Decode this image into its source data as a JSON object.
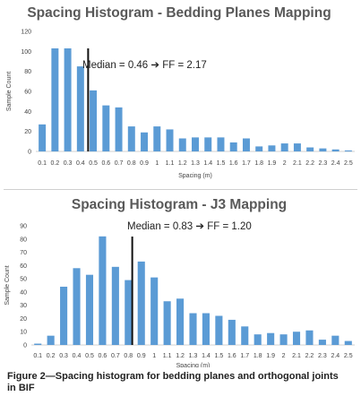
{
  "chart_data": [
    {
      "type": "bar",
      "title": "Spacing Histogram - Bedding Planes Mapping",
      "xlabel": "Spacing (m)",
      "ylabel": "Sample Count",
      "ylim": [
        0,
        120
      ],
      "yticks": [
        "0",
        "20",
        "40",
        "60",
        "80",
        "100",
        "120"
      ],
      "grid": false,
      "categories": [
        "0.1",
        "0.2",
        "0.3",
        "0.4",
        "0.5",
        "0.6",
        "0.7",
        "0.8",
        "0.9",
        "1",
        "1.1",
        "1.2",
        "1.3",
        "1.4",
        "1.5",
        "1.6",
        "1.7",
        "1.8",
        "1.9",
        "2",
        "2.1",
        "2.2",
        "2.3",
        "2.4",
        "2.5"
      ],
      "values": [
        27,
        103,
        103,
        85,
        61,
        46,
        44,
        25,
        19,
        25,
        22,
        13,
        14,
        14,
        14,
        9,
        13,
        5,
        6,
        8,
        8,
        4,
        3,
        2,
        1
      ],
      "color": "#5b9bd5",
      "median_marker_x": 0.46,
      "annotation": "Median = 0.46 ➔ FF = 2.17"
    },
    {
      "type": "bar",
      "title": "Spacing Histogram - J3 Mapping",
      "xlabel": "Spacing (m)",
      "ylabel": "Sample Count",
      "ylim": [
        0,
        90
      ],
      "yticks": [
        "0",
        "10",
        "20",
        "30",
        "40",
        "50",
        "60",
        "70",
        "80",
        "90"
      ],
      "grid": false,
      "categories": [
        "0.1",
        "0.2",
        "0.3",
        "0.4",
        "0.5",
        "0.6",
        "0.7",
        "0.8",
        "0.9",
        "1",
        "1.1",
        "1.2",
        "1.3",
        "1.4",
        "1.5",
        "1.6",
        "1.7",
        "1.8",
        "1.9",
        "2",
        "2.1",
        "2.2",
        "2.3",
        "2.4",
        "2.5"
      ],
      "values": [
        1,
        7,
        44,
        58,
        53,
        82,
        59,
        49,
        63,
        51,
        33,
        35,
        24,
        24,
        22,
        19,
        14,
        8,
        9,
        8,
        10,
        11,
        4,
        7,
        3
      ],
      "color": "#5b9bd5",
      "median_marker_x": 0.83,
      "annotation": "Median = 0.83 ➔ FF = 1.20"
    }
  ],
  "caption": {
    "text": "Figure 2—Spacing histogram for bedding planes and orthogonal joints in BIF"
  }
}
